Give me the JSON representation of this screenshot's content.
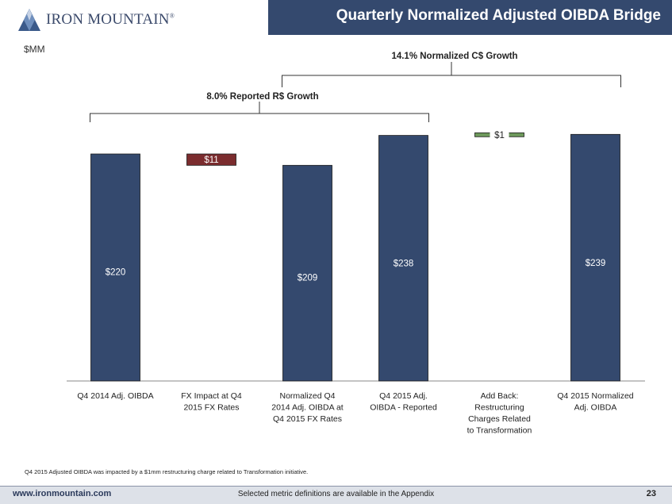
{
  "header": {
    "title": "Quarterly Normalized Adjusted OIBDA Bridge",
    "logo_text": "IRON MOUNTAIN",
    "logo_reg": "®"
  },
  "unit": "$MM",
  "footnote": "Q4 2015  Adjusted OIBDA was impacted by a $1mm restructuring charge related to Transformation initiative.",
  "footer": {
    "url": "www.ironmountain.com",
    "note": "Selected metric definitions are available in the Appendix",
    "page": "23"
  },
  "colors": {
    "bar": "#34496e",
    "negative": "#7b2c2e",
    "positive": "#6e9a5c",
    "title_band": "#34496e"
  },
  "chart_data": {
    "type": "bar",
    "subtype": "waterfall",
    "categories": [
      [
        "Q4 2014 Adj. OIBDA"
      ],
      [
        "FX Impact at Q4",
        "2015 FX Rates"
      ],
      [
        "Normalized Q4",
        "2014 Adj. OIBDA at",
        "Q4 2015 FX Rates"
      ],
      [
        "Q4 2015 Adj.",
        "OIBDA - Reported"
      ],
      [
        "Add Back:",
        "Restructuring",
        "Charges Related",
        "to Transformation"
      ],
      [
        "Q4 2015 Normalized",
        "Adj. OIBDA"
      ]
    ],
    "bars": [
      {
        "kind": "total",
        "start": 0,
        "end": 220,
        "label": "$220"
      },
      {
        "kind": "decrease",
        "start": 220,
        "end": 209,
        "label": "$11"
      },
      {
        "kind": "total",
        "start": 0,
        "end": 209,
        "label": "$209"
      },
      {
        "kind": "total",
        "start": 0,
        "end": 238,
        "label": "$238"
      },
      {
        "kind": "increase",
        "start": 238,
        "end": 239,
        "label": "$1"
      },
      {
        "kind": "total",
        "start": 0,
        "end": 239,
        "label": "$239"
      }
    ],
    "ylim": [
      0,
      250
    ],
    "brackets": [
      {
        "label": "8.0%  Reported R$ Growth",
        "from": 0,
        "to": 3
      },
      {
        "label": "14.1%  Normalized C$ Growth",
        "from": 2,
        "to": 5
      }
    ]
  }
}
